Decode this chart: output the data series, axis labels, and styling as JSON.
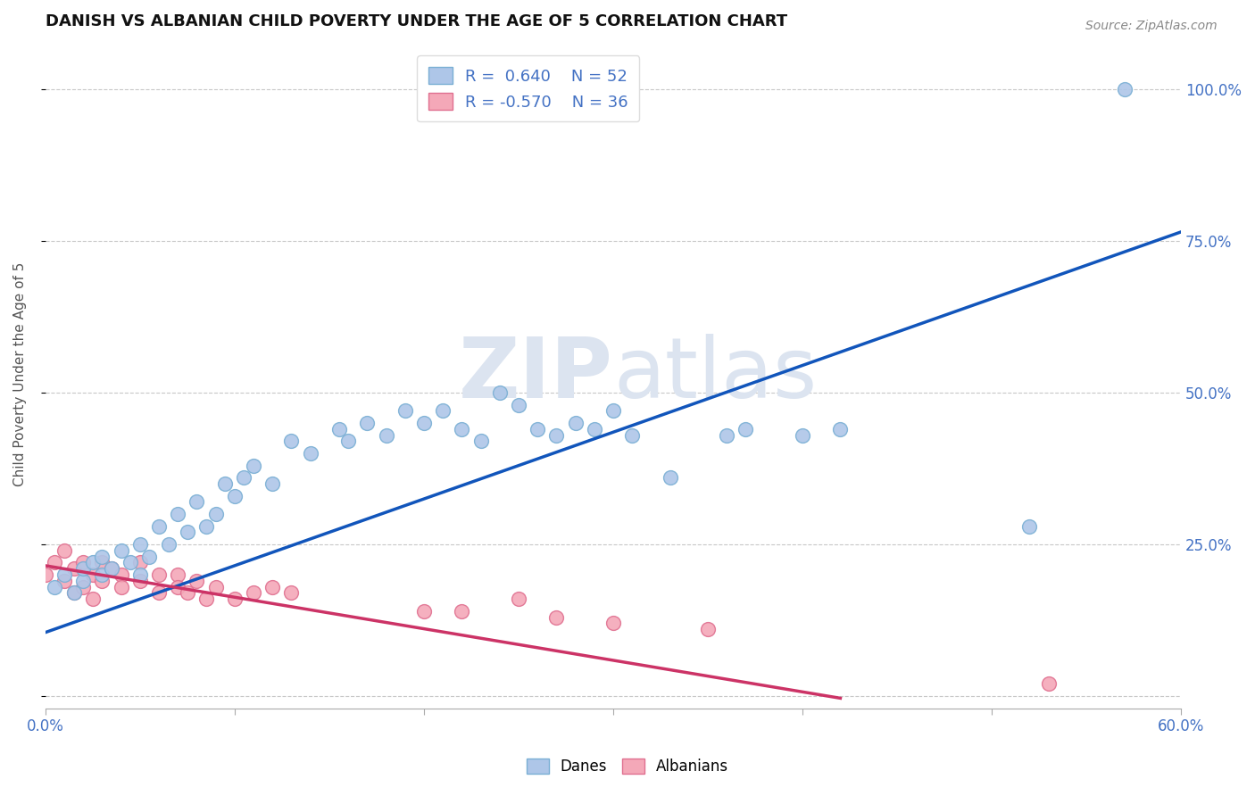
{
  "title": "DANISH VS ALBANIAN CHILD POVERTY UNDER THE AGE OF 5 CORRELATION CHART",
  "source": "Source: ZipAtlas.com",
  "ylabel_label": "Child Poverty Under the Age of 5",
  "xlim": [
    0.0,
    0.6
  ],
  "ylim": [
    -0.02,
    1.08
  ],
  "x_ticks": [
    0.0,
    0.1,
    0.2,
    0.3,
    0.4,
    0.5,
    0.6
  ],
  "x_tick_labels": [
    "0.0%",
    "",
    "",
    "",
    "",
    "",
    "60.0%"
  ],
  "y_ticks": [
    0.0,
    0.25,
    0.5,
    0.75,
    1.0
  ],
  "y_tick_labels_right": [
    "",
    "25.0%",
    "50.0%",
    "75.0%",
    "100.0%"
  ],
  "grid_color": "#c8c8c8",
  "background_color": "#ffffff",
  "danes_color": "#aec6e8",
  "danes_edge_color": "#7aafd4",
  "albanians_color": "#f4a8b8",
  "albanians_edge_color": "#e07090",
  "danes_R": 0.64,
  "danes_N": 52,
  "albanians_R": -0.57,
  "albanians_N": 36,
  "danes_line_color": "#1155bb",
  "albanians_line_color": "#cc3366",
  "watermark_color": "#dce4f0",
  "danes_x": [
    0.005,
    0.01,
    0.015,
    0.02,
    0.02,
    0.025,
    0.03,
    0.03,
    0.035,
    0.04,
    0.045,
    0.05,
    0.05,
    0.055,
    0.06,
    0.065,
    0.07,
    0.075,
    0.08,
    0.085,
    0.09,
    0.095,
    0.1,
    0.105,
    0.11,
    0.12,
    0.13,
    0.14,
    0.155,
    0.16,
    0.17,
    0.18,
    0.19,
    0.2,
    0.21,
    0.22,
    0.23,
    0.24,
    0.25,
    0.26,
    0.27,
    0.28,
    0.29,
    0.3,
    0.31,
    0.33,
    0.36,
    0.37,
    0.4,
    0.42,
    0.52,
    0.57
  ],
  "danes_y": [
    0.18,
    0.2,
    0.17,
    0.19,
    0.21,
    0.22,
    0.2,
    0.23,
    0.21,
    0.24,
    0.22,
    0.2,
    0.25,
    0.23,
    0.28,
    0.25,
    0.3,
    0.27,
    0.32,
    0.28,
    0.3,
    0.35,
    0.33,
    0.36,
    0.38,
    0.35,
    0.42,
    0.4,
    0.44,
    0.42,
    0.45,
    0.43,
    0.47,
    0.45,
    0.47,
    0.44,
    0.42,
    0.5,
    0.48,
    0.44,
    0.43,
    0.45,
    0.44,
    0.47,
    0.43,
    0.36,
    0.43,
    0.44,
    0.43,
    0.44,
    0.28,
    1.0
  ],
  "albanians_x": [
    0.0,
    0.005,
    0.01,
    0.01,
    0.015,
    0.015,
    0.02,
    0.02,
    0.025,
    0.025,
    0.03,
    0.03,
    0.035,
    0.04,
    0.04,
    0.05,
    0.05,
    0.06,
    0.06,
    0.07,
    0.07,
    0.075,
    0.08,
    0.085,
    0.09,
    0.1,
    0.11,
    0.12,
    0.13,
    0.2,
    0.22,
    0.25,
    0.27,
    0.3,
    0.35,
    0.53
  ],
  "albanians_y": [
    0.2,
    0.22,
    0.24,
    0.19,
    0.21,
    0.17,
    0.22,
    0.18,
    0.2,
    0.16,
    0.22,
    0.19,
    0.21,
    0.2,
    0.18,
    0.22,
    0.19,
    0.2,
    0.17,
    0.2,
    0.18,
    0.17,
    0.19,
    0.16,
    0.18,
    0.16,
    0.17,
    0.18,
    0.17,
    0.14,
    0.14,
    0.16,
    0.13,
    0.12,
    0.11,
    0.02
  ],
  "danes_line_x": [
    0.0,
    0.6
  ],
  "danes_line_y_intercept": 0.105,
  "danes_line_slope": 1.1,
  "albanians_line_x": [
    0.0,
    0.42
  ],
  "albanians_line_y_intercept": 0.215,
  "albanians_line_slope": -0.52
}
